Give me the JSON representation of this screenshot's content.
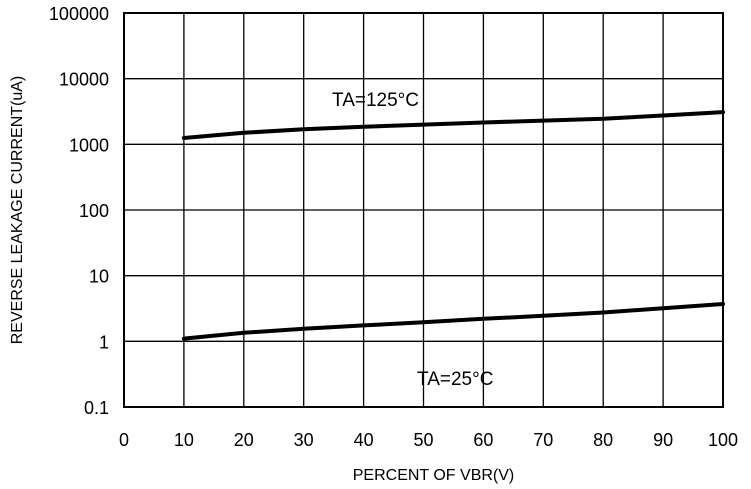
{
  "chart_data": {
    "type": "line",
    "title": "",
    "xlabel": "PERCENT OF VBR(V)",
    "ylabel": "REVERSE LEAKAGE CURRENT(uA)",
    "xlim": [
      0,
      100
    ],
    "ylim": [
      0.1,
      100000
    ],
    "yscale": "log",
    "grid": true,
    "x_ticks": [
      0,
      10,
      20,
      30,
      40,
      50,
      60,
      70,
      80,
      90,
      100
    ],
    "x_tick_labels": [
      "0",
      "10",
      "20",
      "30",
      "40",
      "50",
      "60",
      "70",
      "80",
      "90",
      "100"
    ],
    "y_ticks": [
      0.1,
      1,
      10,
      100,
      1000,
      10000,
      100000
    ],
    "y_tick_labels": [
      "0.1",
      "1",
      "10",
      "100",
      "1000",
      "10000",
      "100000"
    ],
    "series": [
      {
        "name": "TA=125°C",
        "x": [
          10,
          20,
          30,
          40,
          50,
          60,
          70,
          80,
          90,
          100
        ],
        "values": [
          1250,
          1500,
          1700,
          1850,
          2000,
          2150,
          2300,
          2450,
          2750,
          3100
        ]
      },
      {
        "name": "TA=25°C",
        "x": [
          10,
          20,
          30,
          40,
          50,
          60,
          70,
          80,
          90,
          100
        ],
        "values": [
          1.1,
          1.35,
          1.55,
          1.75,
          1.95,
          2.2,
          2.45,
          2.75,
          3.2,
          3.7
        ]
      }
    ],
    "annotations": [
      {
        "text": "TA=125°C",
        "series": 0
      },
      {
        "text": "TA=25°C",
        "series": 1
      }
    ]
  }
}
